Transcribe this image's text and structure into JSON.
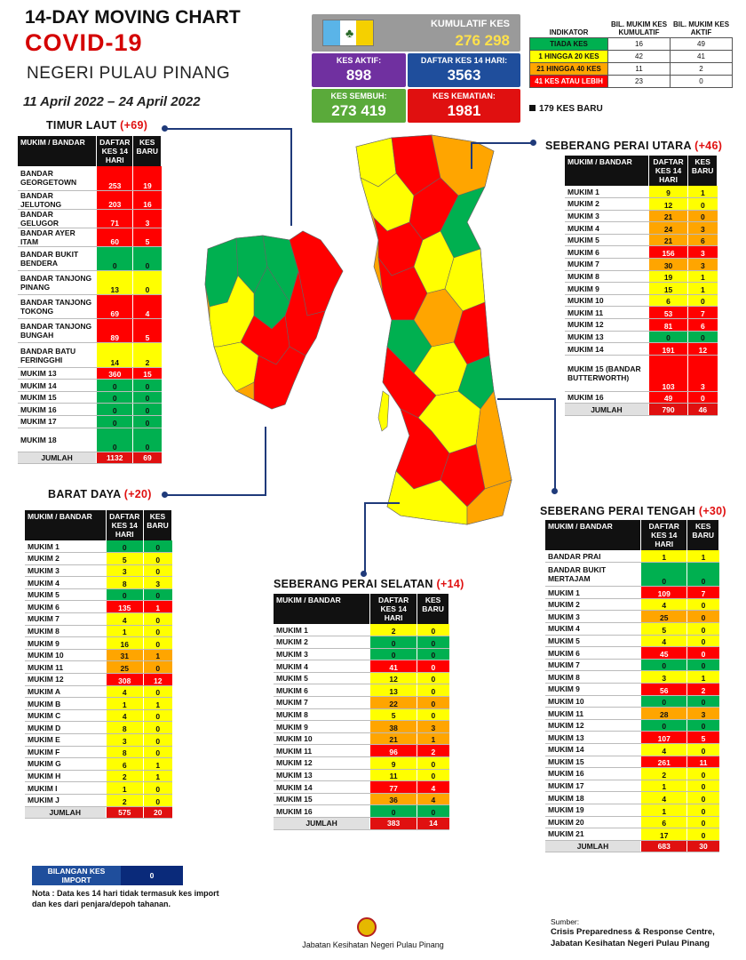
{
  "header": {
    "title_line1": "14-DAY MOVING CHART",
    "title_line2": "COVID-19",
    "title_line3": "NEGERI PULAU PINANG",
    "dates": "11 April 2022 – 24 April 2022"
  },
  "summary": {
    "kumulatif_label": "KUMULATIF KES",
    "kumulatif_value": "276 298",
    "aktif_label": "KES AKTIF:",
    "aktif_value": "898",
    "daftar14_label": "DAFTAR KES 14 HARI:",
    "daftar14_value": "3563",
    "sembuh_label": "KES SEMBUH:",
    "sembuh_value": "273 419",
    "kematian_label": "KES KEMATIAN:",
    "kematian_value": "1981"
  },
  "indicator": {
    "col1": "INDIKATOR",
    "col2": "BIL. MUKIM KES KUMULATIF",
    "col3": "BIL. MUKIM KES AKTIF",
    "rows": [
      {
        "label": "TIADA KES",
        "kum": "16",
        "aktif": "49",
        "color": "#00b050"
      },
      {
        "label": "1 HINGGA 20 KES",
        "kum": "42",
        "aktif": "41",
        "color": "#ffff00"
      },
      {
        "label": "21 HINGGA 40 KES",
        "kum": "11",
        "aktif": "2",
        "color": "#ffa500"
      },
      {
        "label": "41 KES ATAU LEBIH",
        "kum": "23",
        "aktif": "0",
        "color": "#ff0000"
      }
    ],
    "kes_baru": "179 KES BARU"
  },
  "districts": {
    "timur_laut": {
      "name": "TIMUR LAUT",
      "inc": "(+69)",
      "h1": "MUKIM / BANDAR",
      "h2": "DAFTAR KES 14 HARI",
      "h3": "KES BARU",
      "rows": [
        {
          "n": "BANDAR GEORGETOWN",
          "a": "253",
          "b": "19",
          "c": "r",
          "h": 2
        },
        {
          "n": "BANDAR JELUTONG",
          "a": "203",
          "b": "16",
          "c": "r",
          "h": 1
        },
        {
          "n": "BANDAR GELUGOR",
          "a": "71",
          "b": "3",
          "c": "r",
          "h": 1
        },
        {
          "n": "BANDAR AYER ITAM",
          "a": "60",
          "b": "5",
          "c": "r",
          "h": 1
        },
        {
          "n": "BANDAR BUKIT BENDERA",
          "a": "0",
          "b": "0",
          "c": "g",
          "h": 2
        },
        {
          "n": "BANDAR TANJONG PINANG",
          "a": "13",
          "b": "0",
          "c": "y",
          "h": 2
        },
        {
          "n": "BANDAR TANJONG TOKONG",
          "a": "69",
          "b": "4",
          "c": "r",
          "h": 2
        },
        {
          "n": "BANDAR TANJONG BUNGAH",
          "a": "89",
          "b": "5",
          "c": "r",
          "h": 2
        },
        {
          "n": "BANDAR BATU FERINGGHI",
          "a": "14",
          "b": "2",
          "c": "y",
          "h": 2
        },
        {
          "n": "MUKIM 13",
          "a": "360",
          "b": "15",
          "c": "r",
          "h": 1
        },
        {
          "n": "MUKIM 14",
          "a": "0",
          "b": "0",
          "c": "g",
          "h": 1
        },
        {
          "n": "MUKIM 15",
          "a": "0",
          "b": "0",
          "c": "g",
          "h": 1
        },
        {
          "n": "MUKIM 16",
          "a": "0",
          "b": "0",
          "c": "g",
          "h": 1
        },
        {
          "n": "MUKIM 17",
          "a": "0",
          "b": "0",
          "c": "g",
          "h": 1
        },
        {
          "n": "MUKIM 18",
          "a": "0",
          "b": "0",
          "c": "g",
          "h": 2
        }
      ],
      "total": {
        "a": "1132",
        "b": "69"
      }
    },
    "barat_daya": {
      "name": "BARAT DAYA",
      "inc": "(+20)",
      "h1": "MUKIM / BANDAR",
      "h2": "DAFTAR KES 14 HARI",
      "h3": "KES BARU",
      "rows": [
        {
          "n": "MUKIM 1",
          "a": "0",
          "b": "0",
          "c": "g"
        },
        {
          "n": "MUKIM 2",
          "a": "5",
          "b": "0",
          "c": "y"
        },
        {
          "n": "MUKIM 3",
          "a": "3",
          "b": "0",
          "c": "y"
        },
        {
          "n": "MUKIM 4",
          "a": "8",
          "b": "3",
          "c": "y"
        },
        {
          "n": "MUKIM 5",
          "a": "0",
          "b": "0",
          "c": "g"
        },
        {
          "n": "MUKIM 6",
          "a": "135",
          "b": "1",
          "c": "r"
        },
        {
          "n": "MUKIM 7",
          "a": "4",
          "b": "0",
          "c": "y"
        },
        {
          "n": "MUKIM 8",
          "a": "1",
          "b": "0",
          "c": "y"
        },
        {
          "n": "MUKIM 9",
          "a": "16",
          "b": "0",
          "c": "y"
        },
        {
          "n": "MUKIM 10",
          "a": "31",
          "b": "1",
          "c": "o"
        },
        {
          "n": "MUKIM 11",
          "a": "25",
          "b": "0",
          "c": "o"
        },
        {
          "n": "MUKIM 12",
          "a": "308",
          "b": "12",
          "c": "r"
        },
        {
          "n": "MUKIM A",
          "a": "4",
          "b": "0",
          "c": "y"
        },
        {
          "n": "MUKIM B",
          "a": "1",
          "b": "1",
          "c": "y"
        },
        {
          "n": "MUKIM C",
          "a": "4",
          "b": "0",
          "c": "y"
        },
        {
          "n": "MUKIM D",
          "a": "8",
          "b": "0",
          "c": "y"
        },
        {
          "n": "MUKIM E",
          "a": "3",
          "b": "0",
          "c": "y"
        },
        {
          "n": "MUKIM F",
          "a": "8",
          "b": "0",
          "c": "y"
        },
        {
          "n": "MUKIM G",
          "a": "6",
          "b": "1",
          "c": "y"
        },
        {
          "n": "MUKIM H",
          "a": "2",
          "b": "1",
          "c": "y"
        },
        {
          "n": "MUKIM I",
          "a": "1",
          "b": "0",
          "c": "y"
        },
        {
          "n": "MUKIM J",
          "a": "2",
          "b": "0",
          "c": "y"
        }
      ],
      "total": {
        "a": "575",
        "b": "20"
      }
    },
    "sp_utara": {
      "name": "SEBERANG PERAI UTARA",
      "inc": "(+46)",
      "h1": "MUKIM / BANDAR",
      "h2": "DAFTAR KES 14 HARI",
      "h3": "KES BARU",
      "rows": [
        {
          "n": "MUKIM 1",
          "a": "9",
          "b": "1",
          "c": "y"
        },
        {
          "n": "MUKIM 2",
          "a": "12",
          "b": "0",
          "c": "y"
        },
        {
          "n": "MUKIM 3",
          "a": "21",
          "b": "0",
          "c": "o"
        },
        {
          "n": "MUKIM 4",
          "a": "24",
          "b": "3",
          "c": "o"
        },
        {
          "n": "MUKIM 5",
          "a": "21",
          "b": "6",
          "c": "o"
        },
        {
          "n": "MUKIM 6",
          "a": "156",
          "b": "3",
          "c": "r"
        },
        {
          "n": "MUKIM 7",
          "a": "30",
          "b": "3",
          "c": "o"
        },
        {
          "n": "MUKIM 8",
          "a": "19",
          "b": "1",
          "c": "y"
        },
        {
          "n": "MUKIM 9",
          "a": "15",
          "b": "1",
          "c": "y"
        },
        {
          "n": "MUKIM 10",
          "a": "6",
          "b": "0",
          "c": "y"
        },
        {
          "n": "MUKIM 11",
          "a": "53",
          "b": "7",
          "c": "r"
        },
        {
          "n": "MUKIM 12",
          "a": "81",
          "b": "6",
          "c": "r"
        },
        {
          "n": "MUKIM 13",
          "a": "0",
          "b": "0",
          "c": "g"
        },
        {
          "n": "MUKIM 14",
          "a": "191",
          "b": "12",
          "c": "r"
        },
        {
          "n": "MUKIM 15 (BANDAR BUTTERWORTH)",
          "a": "103",
          "b": "3",
          "c": "r",
          "h": 3
        },
        {
          "n": "MUKIM 16",
          "a": "49",
          "b": "0",
          "c": "r"
        }
      ],
      "total": {
        "a": "790",
        "b": "46"
      }
    },
    "sp_selatan": {
      "name": "SEBERANG PERAI SELATAN",
      "inc": "(+14)",
      "h1": "MUKIM / BANDAR",
      "h2": "DAFTAR KES 14 HARI",
      "h3": "KES BARU",
      "rows": [
        {
          "n": "MUKIM 1",
          "a": "2",
          "b": "0",
          "c": "y"
        },
        {
          "n": "MUKIM 2",
          "a": "0",
          "b": "0",
          "c": "g"
        },
        {
          "n": "MUKIM 3",
          "a": "0",
          "b": "0",
          "c": "g"
        },
        {
          "n": "MUKIM 4",
          "a": "41",
          "b": "0",
          "c": "r"
        },
        {
          "n": "MUKIM 5",
          "a": "12",
          "b": "0",
          "c": "y"
        },
        {
          "n": "MUKIM 6",
          "a": "13",
          "b": "0",
          "c": "y"
        },
        {
          "n": "MUKIM 7",
          "a": "22",
          "b": "0",
          "c": "o"
        },
        {
          "n": "MUKIM 8",
          "a": "5",
          "b": "0",
          "c": "y"
        },
        {
          "n": "MUKIM 9",
          "a": "38",
          "b": "3",
          "c": "o"
        },
        {
          "n": "MUKIM 10",
          "a": "21",
          "b": "1",
          "c": "o"
        },
        {
          "n": "MUKIM 11",
          "a": "96",
          "b": "2",
          "c": "r"
        },
        {
          "n": "MUKIM 12",
          "a": "9",
          "b": "0",
          "c": "y"
        },
        {
          "n": "MUKIM 13",
          "a": "11",
          "b": "0",
          "c": "y"
        },
        {
          "n": "MUKIM 14",
          "a": "77",
          "b": "4",
          "c": "r"
        },
        {
          "n": "MUKIM 15",
          "a": "36",
          "b": "4",
          "c": "o"
        },
        {
          "n": "MUKIM 16",
          "a": "0",
          "b": "0",
          "c": "g"
        }
      ],
      "total": {
        "a": "383",
        "b": "14"
      }
    },
    "sp_tengah": {
      "name": "SEBERANG PERAI TENGAH",
      "inc": "(+30)",
      "h1": "MUKIM / BANDAR",
      "h2": "DAFTAR KES 14 HARI",
      "h3": "KES BARU",
      "rows": [
        {
          "n": "BANDAR PRAI",
          "a": "1",
          "b": "1",
          "c": "y"
        },
        {
          "n": "BANDAR BUKIT MERTAJAM",
          "a": "0",
          "b": "0",
          "c": "g",
          "h": 2
        },
        {
          "n": "MUKIM 1",
          "a": "109",
          "b": "7",
          "c": "r"
        },
        {
          "n": "MUKIM 2",
          "a": "4",
          "b": "0",
          "c": "y"
        },
        {
          "n": "MUKIM 3",
          "a": "25",
          "b": "0",
          "c": "o"
        },
        {
          "n": "MUKIM 4",
          "a": "5",
          "b": "0",
          "c": "y"
        },
        {
          "n": "MUKIM 5",
          "a": "4",
          "b": "0",
          "c": "y"
        },
        {
          "n": "MUKIM 6",
          "a": "45",
          "b": "0",
          "c": "r"
        },
        {
          "n": "MUKIM 7",
          "a": "0",
          "b": "0",
          "c": "g"
        },
        {
          "n": "MUKIM 8",
          "a": "3",
          "b": "1",
          "c": "y"
        },
        {
          "n": "MUKIM 9",
          "a": "56",
          "b": "2",
          "c": "r"
        },
        {
          "n": "MUKIM 10",
          "a": "0",
          "b": "0",
          "c": "g"
        },
        {
          "n": "MUKIM 11",
          "a": "28",
          "b": "3",
          "c": "o"
        },
        {
          "n": "MUKIM 12",
          "a": "0",
          "b": "0",
          "c": "g"
        },
        {
          "n": "MUKIM 13",
          "a": "107",
          "b": "5",
          "c": "r"
        },
        {
          "n": "MUKIM 14",
          "a": "4",
          "b": "0",
          "c": "y"
        },
        {
          "n": "MUKIM 15",
          "a": "261",
          "b": "11",
          "c": "r"
        },
        {
          "n": "MUKIM 16",
          "a": "2",
          "b": "0",
          "c": "y"
        },
        {
          "n": "MUKIM 17",
          "a": "1",
          "b": "0",
          "c": "y"
        },
        {
          "n": "MUKIM 18",
          "a": "4",
          "b": "0",
          "c": "y"
        },
        {
          "n": "MUKIM 19",
          "a": "1",
          "b": "0",
          "c": "y"
        },
        {
          "n": "MUKIM 20",
          "a": "6",
          "b": "0",
          "c": "y"
        },
        {
          "n": "MUKIM 21",
          "a": "17",
          "b": "0",
          "c": "y"
        }
      ],
      "total": {
        "a": "683",
        "b": "30"
      }
    }
  },
  "total_label": "JUMLAH",
  "import": {
    "label": "BILANGAN KES IMPORT",
    "value": "0"
  },
  "nota": "Nota : Data kes 14 hari tidak termasuk kes import dan kes dari penjara/depoh tahanan.",
  "footer": "Jabatan Kesihatan Negeri Pulau Pinang",
  "sumber": {
    "label": "Sumber:",
    "line1": "Crisis Preparedness & Response Centre,",
    "line2": "Jabatan Kesihatan Negeri Pulau Pinang"
  },
  "map_colors": {
    "green": "#00b050",
    "yellow": "#ffff00",
    "orange": "#ffa500",
    "red": "#ff0000"
  }
}
